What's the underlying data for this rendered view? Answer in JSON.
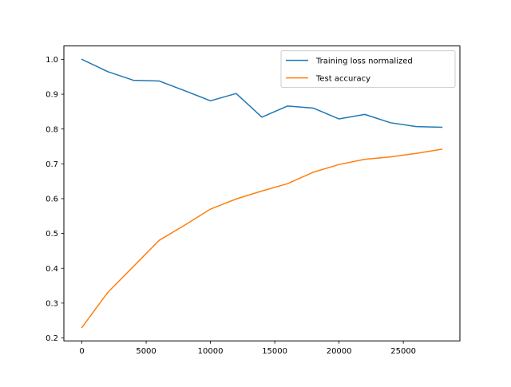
{
  "chart_data": {
    "type": "line",
    "title": "",
    "xlabel": "",
    "ylabel": "",
    "xlim": [
      -1400,
      29400
    ],
    "ylim": [
      0.1915,
      1.0385
    ],
    "x_ticks": [
      0,
      5000,
      10000,
      15000,
      20000,
      25000
    ],
    "x_tick_labels": [
      "0",
      "5000",
      "10000",
      "15000",
      "20000",
      "25000"
    ],
    "y_ticks": [
      0.2,
      0.3,
      0.4,
      0.5,
      0.6,
      0.7,
      0.8,
      0.9,
      1.0
    ],
    "y_tick_labels": [
      "0.2",
      "0.3",
      "0.4",
      "0.5",
      "0.6",
      "0.7",
      "0.8",
      "0.9",
      "1.0"
    ],
    "grid": false,
    "legend": "top-right",
    "x": [
      0,
      2000,
      4000,
      6000,
      8000,
      10000,
      12000,
      14000,
      16000,
      18000,
      20000,
      22000,
      24000,
      26000,
      28000
    ],
    "series": [
      {
        "name": "Training loss normalized",
        "color": "#1f77b4",
        "values": [
          1.0,
          0.965,
          0.94,
          0.938,
          0.91,
          0.881,
          0.902,
          0.834,
          0.866,
          0.86,
          0.829,
          0.842,
          0.818,
          0.807,
          0.805
        ]
      },
      {
        "name": "Test accuracy",
        "color": "#ff7f0e",
        "values": [
          0.23,
          0.33,
          0.405,
          0.48,
          0.524,
          0.57,
          0.599,
          0.622,
          0.643,
          0.676,
          0.698,
          0.713,
          0.72,
          0.73,
          0.742
        ]
      }
    ]
  }
}
